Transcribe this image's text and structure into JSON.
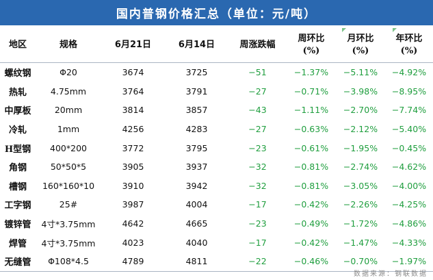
{
  "title": "国内普钢价格汇总（单位：元/吨）",
  "headers": [
    "地区",
    "规格",
    "6月21日",
    "6月14日",
    "周涨跌幅",
    "周环比\n(%)",
    "月环比\n(%)",
    "年环比\n(%)"
  ],
  "rows": [
    {
      "region": "螺纹钢",
      "spec": "Φ20",
      "p1": "3674",
      "p2": "3725",
      "chg": "−51",
      "wk": "−1.37%",
      "mo": "−5.11%",
      "yr": "−4.92%"
    },
    {
      "region": "热轧",
      "spec": "4.75mm",
      "p1": "3764",
      "p2": "3791",
      "chg": "−27",
      "wk": "−0.71%",
      "mo": "−3.98%",
      "yr": "−8.95%"
    },
    {
      "region": "中厚板",
      "spec": "20mm",
      "p1": "3814",
      "p2": "3857",
      "chg": "−43",
      "wk": "−1.11%",
      "mo": "−2.70%",
      "yr": "−7.74%"
    },
    {
      "region": "冷轧",
      "spec": "1mm",
      "p1": "4256",
      "p2": "4283",
      "chg": "−27",
      "wk": "−0.63%",
      "mo": "−2.12%",
      "yr": "−5.40%"
    },
    {
      "region": "H型钢",
      "spec": "400*200",
      "p1": "3772",
      "p2": "3795",
      "chg": "−23",
      "wk": "−0.61%",
      "mo": "−1.95%",
      "yr": "−0.45%"
    },
    {
      "region": "角钢",
      "spec": "50*50*5",
      "p1": "3905",
      "p2": "3937",
      "chg": "−32",
      "wk": "−0.81%",
      "mo": "−2.74%",
      "yr": "−4.62%"
    },
    {
      "region": "槽钢",
      "spec": "160*160*10",
      "p1": "3910",
      "p2": "3942",
      "chg": "−32",
      "wk": "−0.81%",
      "mo": "−3.05%",
      "yr": "−4.00%"
    },
    {
      "region": "工字钢",
      "spec": "25#",
      "p1": "3987",
      "p2": "4004",
      "chg": "−17",
      "wk": "−0.42%",
      "mo": "−2.26%",
      "yr": "−4.25%"
    },
    {
      "region": "镀锌管",
      "spec": "4寸*3.75mm",
      "p1": "4642",
      "p2": "4665",
      "chg": "−23",
      "wk": "−0.49%",
      "mo": "−1.72%",
      "yr": "−4.86%"
    },
    {
      "region": "焊管",
      "spec": "4寸*3.75mm",
      "p1": "4023",
      "p2": "4040",
      "chg": "−17",
      "wk": "−0.42%",
      "mo": "−1.47%",
      "yr": "−4.33%"
    },
    {
      "region": "无缝管",
      "spec": "Φ108*4.5",
      "p1": "4789",
      "p2": "4811",
      "chg": "−22",
      "wk": "−0.46%",
      "mo": "−0.70%",
      "yr": "−1.97%"
    }
  ],
  "source": "数据来源：钢联数据",
  "colors": {
    "title_bg": "#2a68b0",
    "negative": "#1f9e3e",
    "rule": "#a9b4c2"
  }
}
